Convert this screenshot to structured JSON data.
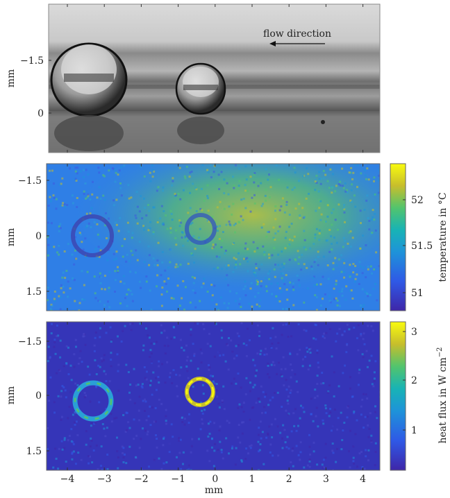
{
  "figure": {
    "annotation": "flow direction",
    "panels": [
      {
        "id": "photo",
        "ylabel": "mm",
        "y_ticks": [
          "−1.5",
          "0"
        ]
      },
      {
        "id": "temperature",
        "ylabel": "mm",
        "y_ticks": [
          "−1.5",
          "0",
          "1.5"
        ],
        "colorbar_label": "temperature in °C",
        "colorbar_ticks": [
          "52",
          "51.5",
          "51"
        ]
      },
      {
        "id": "heatflux",
        "ylabel": "mm",
        "y_ticks": [
          "−1.5",
          "0",
          "1.5"
        ],
        "colorbar_label_main": "heat flux in W cm",
        "colorbar_label_sup": "−2",
        "colorbar_ticks": [
          "3",
          "2",
          "1"
        ]
      }
    ],
    "x_ticks": [
      "−4",
      "−3",
      "−2",
      "−1",
      "0",
      "1",
      "2",
      "3",
      "4"
    ],
    "xlabel": "mm"
  },
  "colors": {
    "parula_low": "#3e26a8",
    "parula_mid": "#2a9fd6",
    "parula_green": "#3fbc73",
    "parula_high": "#f9fb0e",
    "temp_background": "#2f7fe6",
    "flux_background": "#3535b8"
  }
}
